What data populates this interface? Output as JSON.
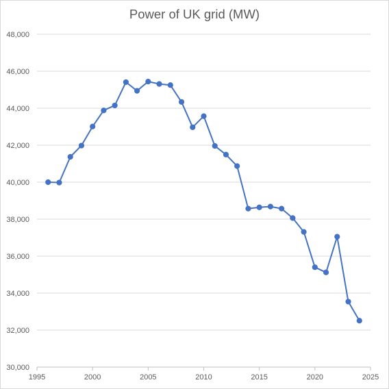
{
  "chart_data": {
    "type": "line",
    "title": "Power of UK grid (MW)",
    "xlabel": "",
    "ylabel": "",
    "xlim": [
      1995,
      2025
    ],
    "ylim": [
      30000,
      48000
    ],
    "x_ticks": [
      1995,
      2000,
      2005,
      2010,
      2015,
      2020,
      2025
    ],
    "x_tick_labels": [
      "1995",
      "2000",
      "2005",
      "2010",
      "2015",
      "2020",
      "2025"
    ],
    "y_ticks": [
      30000,
      32000,
      34000,
      36000,
      38000,
      40000,
      42000,
      44000,
      46000,
      48000
    ],
    "y_tick_labels": [
      "30,000",
      "32,000",
      "34,000",
      "36,000",
      "38,000",
      "40,000",
      "42,000",
      "44,000",
      "46,000",
      "48,000"
    ],
    "grid": "horizontal",
    "legend": "none",
    "series_color": "#4472c4",
    "grid_color": "#d9d9d9",
    "series": [
      {
        "x": [
          1996,
          1997,
          1998,
          1999,
          2000,
          2001,
          2002,
          2003,
          2004,
          2005,
          2006,
          2007,
          2008,
          2009,
          2010,
          2011,
          2012,
          2013,
          2014,
          2015,
          2016,
          2017,
          2018,
          2019,
          2020,
          2021,
          2022,
          2023,
          2024
        ],
        "values": [
          40000,
          39980,
          41370,
          41980,
          43010,
          43880,
          44150,
          45410,
          44940,
          45440,
          45310,
          45250,
          44340,
          42970,
          43570,
          41960,
          41490,
          40870,
          38570,
          38640,
          38680,
          38570,
          38060,
          37310,
          35400,
          35120,
          37050,
          33540,
          32510
        ]
      }
    ]
  }
}
